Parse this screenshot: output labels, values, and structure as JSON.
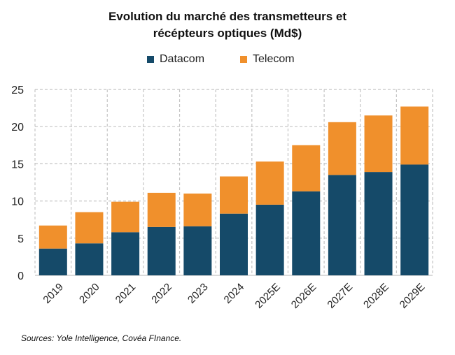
{
  "chart_data": {
    "type": "bar",
    "stacked": true,
    "title_line1": "Evolution du marché des transmetteurs  et",
    "title_line2": "récépteurs optiques (Md$)",
    "xlabel": "",
    "ylabel": "",
    "categories": [
      "2019",
      "2020",
      "2021",
      "2022",
      "2023",
      "2024",
      "2025E",
      "2026E",
      "2027E",
      "2028E",
      "2029E"
    ],
    "series": [
      {
        "name": "Datacom",
        "color": "#154a69",
        "values": [
          3.6,
          4.3,
          5.8,
          6.5,
          6.6,
          8.3,
          9.5,
          11.3,
          13.5,
          13.9,
          14.9
        ]
      },
      {
        "name": "Telecom",
        "color": "#f0902c",
        "values": [
          3.1,
          4.2,
          4.1,
          4.6,
          4.4,
          5.0,
          5.8,
          6.2,
          7.1,
          7.6,
          7.8
        ]
      }
    ],
    "yticks": [
      0,
      5,
      10,
      15,
      20,
      25
    ],
    "ylim": [
      0,
      25
    ],
    "grid": true,
    "legend_position": "top-center"
  },
  "source_text": "Sources: Yole Intelligence, Covéa FInance."
}
